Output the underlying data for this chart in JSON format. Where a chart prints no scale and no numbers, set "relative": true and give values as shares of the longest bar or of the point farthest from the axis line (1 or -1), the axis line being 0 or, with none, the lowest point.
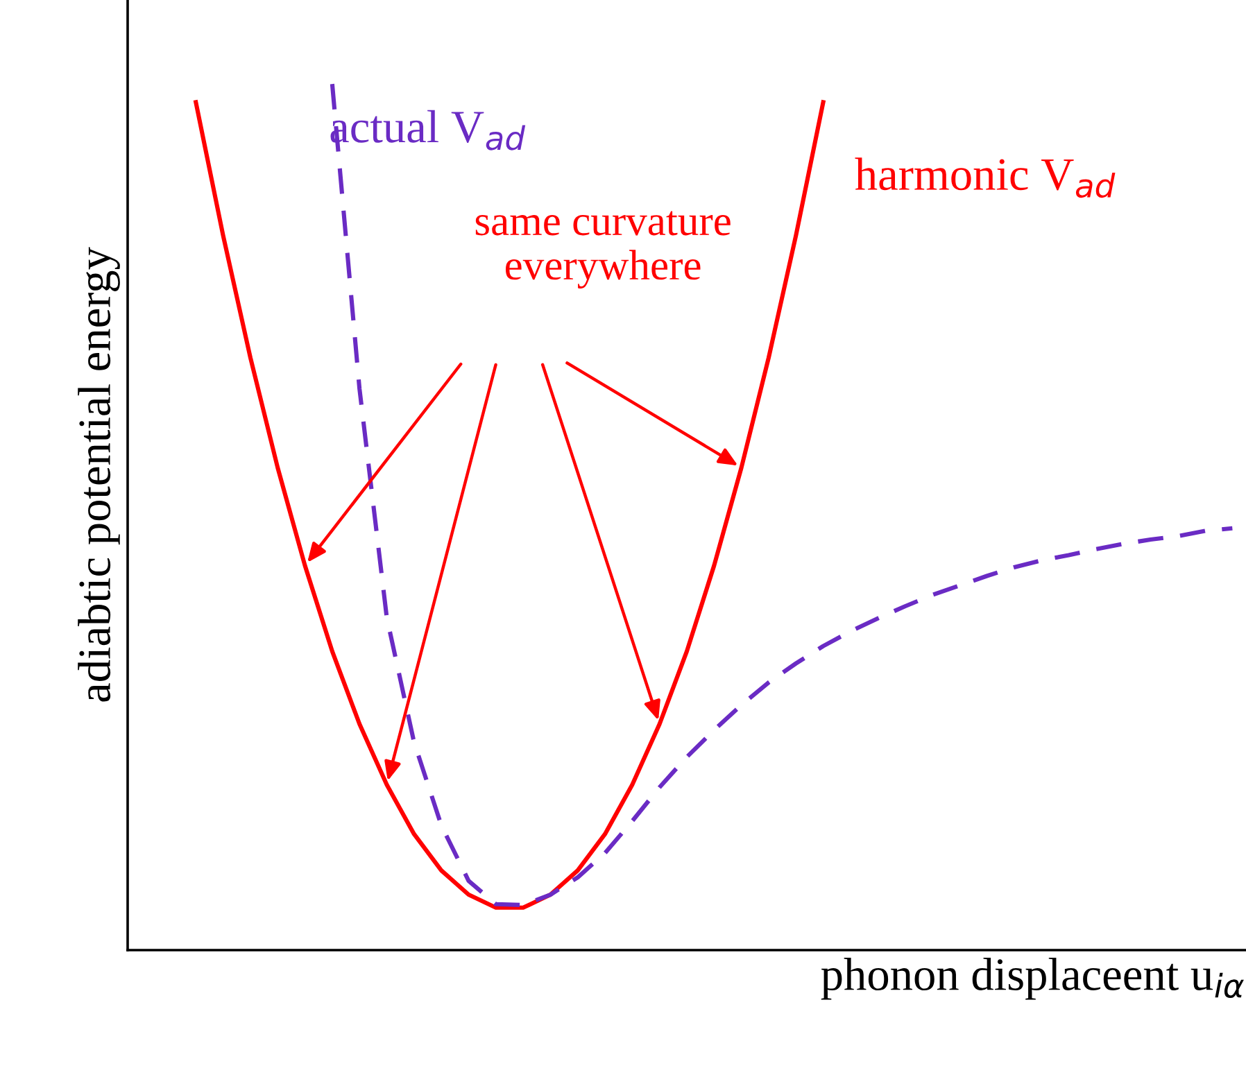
{
  "chart_data": {
    "type": "line",
    "relative": true,
    "ylabel": "adiabtic potential energy",
    "xlabel": "phonon displaceent u$_{iα}$",
    "categories": [
      null,
      null,
      null,
      null,
      null,
      null,
      null,
      null,
      null,
      null,
      null,
      null,
      null,
      null,
      null,
      null,
      null,
      null,
      null,
      null,
      null,
      null,
      null,
      null,
      null,
      null,
      null,
      null,
      null,
      null,
      null,
      null,
      null,
      null,
      null,
      null,
      null,
      null,
      null,
      null,
      null
    ],
    "series": [
      {
        "name": "harmonic V$_{ad}$",
        "color": "#ff0000",
        "line_style": "solid",
        "values": [
          null,
          null,
          0.979,
          0.825,
          0.684,
          0.557,
          0.444,
          0.345,
          0.261,
          0.191,
          0.134,
          0.092,
          0.064,
          0.049,
          0.049,
          0.064,
          0.092,
          0.134,
          0.191,
          0.261,
          0.345,
          0.444,
          0.557,
          0.684,
          0.825,
          0.979,
          null,
          null,
          null,
          null,
          null,
          null,
          null,
          null,
          null,
          null,
          null,
          null,
          null,
          null,
          null
        ]
      },
      {
        "name": "actual V$_{ad}$",
        "color": "#6a2bc4",
        "line_style": "dashed",
        "values": [
          null,
          null,
          null,
          null,
          null,
          null,
          null,
          1,
          0.648,
          0.384,
          0.24,
          0.144,
          0.08,
          0.053,
          0.052,
          0.064,
          0.084,
          0.112,
          0.149,
          0.188,
          0.223,
          0.254,
          0.283,
          0.309,
          0.331,
          0.351,
          0.368,
          0.383,
          0.397,
          0.41,
          0.421,
          0.432,
          0.442,
          0.45,
          0.456,
          0.463,
          0.469,
          0.474,
          0.478,
          0.484,
          0.487
        ]
      }
    ],
    "annotations": [
      "same curvature\neverywhere"
    ],
    "legend": false
  }
}
